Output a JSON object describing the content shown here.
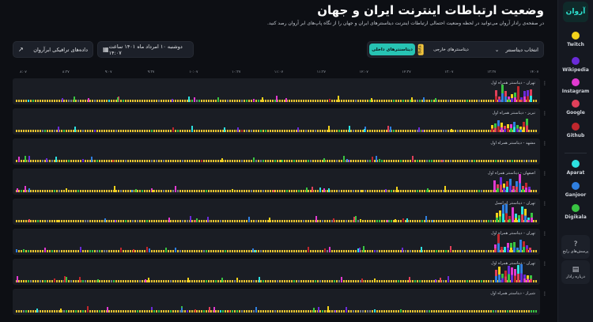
{
  "header": {
    "title": "وضعیت ارتباطات اینترنت ایران و جهان",
    "subtitle": "در صفحه‌ی رادار آروان می‌توانید در لحظه وضعیت احتمالی ارتباطات اینترنت دیتاسنترهای ایران و جهان را از نگاه پاپ‌های ابر آروان رصد کنید."
  },
  "logo": {
    "text": "آروان"
  },
  "controls": {
    "tab_internal": "دیتاسنترهای داخلی",
    "tab_external": "دیتاسنترهای خارجی",
    "beta_badge": "Beta",
    "select_label": "انتخاب دیتاسنتر",
    "date_label": "دوشنبه ۱۰ امرداد ماه ۱۴۰۱ ساعت ۱۴:۰۷",
    "traffic_label": "داده‌های ترافیکی ابرآروان"
  },
  "sidebar": {
    "services": [
      {
        "label": "Twitch",
        "color": "#f2d21b"
      },
      {
        "label": "Wikipedia",
        "color": "#6a2bd8"
      },
      {
        "label": "Instagram",
        "color": "#e13ad0"
      },
      {
        "label": "Google",
        "color": "#e0405a"
      },
      {
        "label": "Github",
        "color": "#c0272d"
      },
      {
        "label": "Aparat",
        "color": "#2de1e1"
      },
      {
        "label": "Ganjoor",
        "color": "#2f7fe0"
      },
      {
        "label": "Digikala",
        "color": "#39c442"
      }
    ],
    "help_label": "پرسش‌های رایج",
    "guide_label": "درباره رادار"
  },
  "time_axis": [
    "۸:۰۷",
    "۸:۳۷",
    "۹:۰۷",
    "۹:۳۷",
    "۱۰:۰۷",
    "۱۰:۳۷",
    "۱۱:۰۷",
    "۱۱:۳۷",
    "۱۲:۰۷",
    "۱۲:۳۷",
    "۱۳:۰۷",
    "۱۳:۳۷",
    "۱۴:۰۷"
  ],
  "rows": [
    {
      "label": "تهران - دیتاسنتر همراه اول"
    },
    {
      "label": "تبریز - دیتاسنتر همراه اول"
    },
    {
      "label": "مشهد - دیتاسنتر همراه اول"
    },
    {
      "label": "اصفهان - دیتاسنتر همراه اول"
    },
    {
      "label": "تهران - دیتاسنتر ایرانسل"
    },
    {
      "label": "تهران - دیتاسنتر همراه اول"
    },
    {
      "label": "تهران - دیتاسنتر همراه اول"
    },
    {
      "label": "شیراز - دیتاسنتر همراه اول"
    }
  ]
}
